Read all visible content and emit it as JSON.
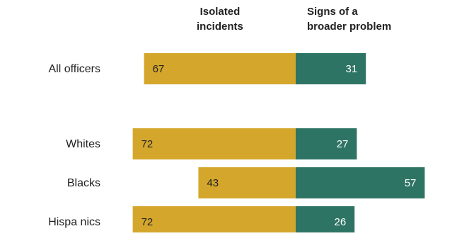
{
  "header": {
    "left": "Isolated\nincidents",
    "right": "Signs of a\nbroader problem"
  },
  "colors": {
    "isolated": "#d4a72c",
    "broader": "#2e7464",
    "label_on_gold": "#222222",
    "label_on_green": "#ffffff"
  },
  "chart_data": {
    "type": "bar",
    "orientation": "horizontal-diverging",
    "categories": [
      "All officers",
      "Whites",
      "Blacks",
      "Hispa nics"
    ],
    "series": [
      {
        "name": "Isolated incidents",
        "values": [
          67,
          72,
          43,
          72
        ]
      },
      {
        "name": "Signs of a broader problem",
        "values": [
          31,
          27,
          57,
          26
        ]
      }
    ],
    "legend": "top",
    "grid": false
  }
}
